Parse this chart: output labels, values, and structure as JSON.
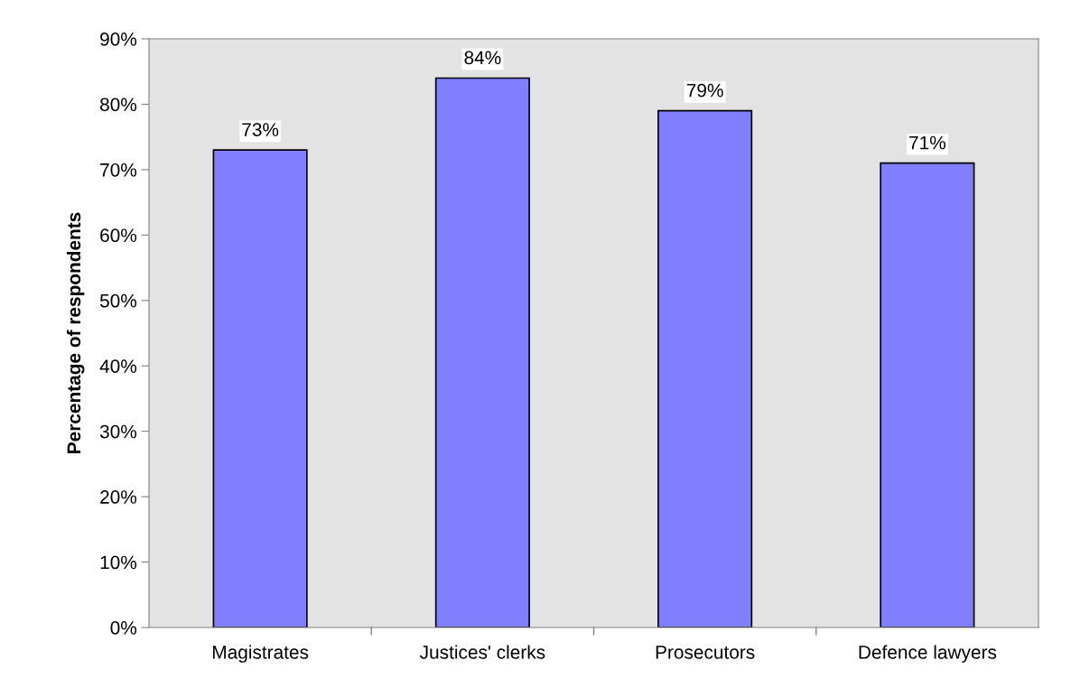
{
  "chart_data": {
    "type": "bar",
    "ylabel": "Percentage of respondents",
    "categories": [
      "Magistrates",
      "Justices' clerks",
      "Prosecutors",
      "Defence lawyers"
    ],
    "values": [
      73,
      84,
      79,
      71
    ],
    "value_labels": [
      "73%",
      "84%",
      "79%",
      "71%"
    ],
    "color": "#8080ff",
    "ylim": [
      0,
      90
    ],
    "yticks": [
      {
        "value": 0,
        "label": "0%"
      },
      {
        "value": 10,
        "label": "10%"
      },
      {
        "value": 20,
        "label": "20%"
      },
      {
        "value": 30,
        "label": "30%"
      },
      {
        "value": 40,
        "label": "40%"
      },
      {
        "value": 50,
        "label": "50%"
      },
      {
        "value": 60,
        "label": "60%"
      },
      {
        "value": 70,
        "label": "70%"
      },
      {
        "value": 80,
        "label": "80%"
      },
      {
        "value": 90,
        "label": "90%"
      }
    ],
    "grid": false,
    "legend": false
  }
}
